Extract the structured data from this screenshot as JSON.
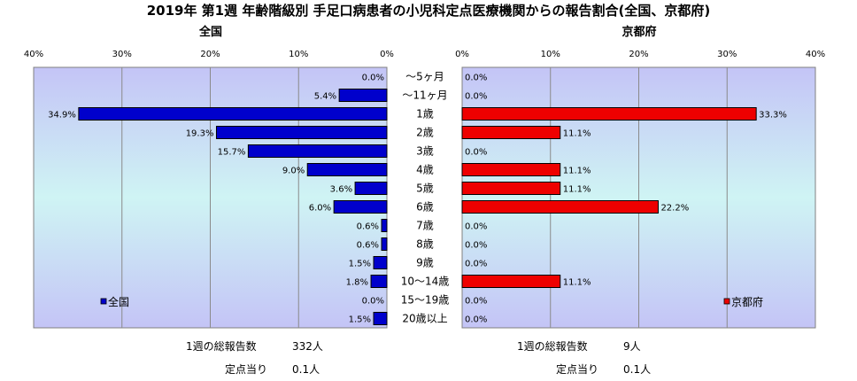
{
  "chart_data": {
    "type": "bar",
    "title": "2019年 第1週 年齢階級別 手足口病患者の小児科定点医療機関からの報告割合(全国、京都府)",
    "categories": [
      "～5ヶ月",
      "～11ヶ月",
      "1歳",
      "2歳",
      "3歳",
      "4歳",
      "5歳",
      "6歳",
      "7歳",
      "8歳",
      "9歳",
      "10～14歳",
      "15～19歳",
      "20歳以上"
    ],
    "xlim": [
      0,
      40
    ],
    "ticks": [
      "0%",
      "10%",
      "20%",
      "30%",
      "40%"
    ],
    "tick_values": [
      0,
      10,
      20,
      30,
      40
    ],
    "colors": {
      "national": "#0000cc",
      "kyoto": "#ee0000",
      "plot_bg_top": "#c6c6f6",
      "plot_bg_mid": "#cdf2f2"
    },
    "panels": [
      {
        "title": "全国",
        "legend": "全国",
        "values": [
          0.0,
          5.4,
          34.9,
          19.3,
          15.7,
          9.0,
          3.6,
          6.0,
          0.6,
          0.6,
          1.5,
          1.8,
          0.0,
          1.5
        ],
        "labels": [
          "0.0%",
          "5.4%",
          "34.9%",
          "19.3%",
          "15.7%",
          "9.0%",
          "3.6%",
          "6.0%",
          "0.6%",
          "0.6%",
          "1.5%",
          "1.8%",
          "0.0%",
          "1.5%"
        ]
      },
      {
        "title": "京都府",
        "legend": "京都府",
        "values": [
          0.0,
          0.0,
          33.3,
          11.1,
          0.0,
          11.1,
          11.1,
          22.2,
          0.0,
          0.0,
          0.0,
          11.1,
          0.0,
          0.0
        ],
        "labels": [
          "0.0%",
          "0.0%",
          "33.3%",
          "11.1%",
          "0.0%",
          "11.1%",
          "11.1%",
          "22.2%",
          "0.0%",
          "0.0%",
          "0.0%",
          "11.1%",
          "0.0%",
          "0.0%"
        ]
      }
    ]
  },
  "footer": {
    "national": {
      "total_label": "1週の総報告数",
      "total_value": "332人",
      "per_label": "定点当り",
      "per_value": "0.1人"
    },
    "kyoto": {
      "total_label": "1週の総報告数",
      "total_value": "9人",
      "per_label": "定点当り",
      "per_value": "0.1人"
    }
  }
}
